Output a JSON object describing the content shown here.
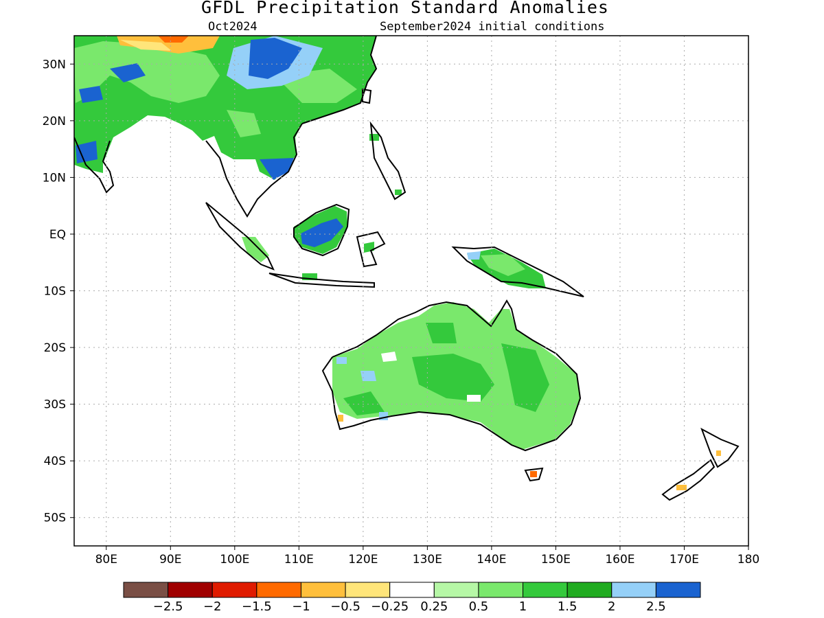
{
  "header": {
    "title": "GFDL Precipitation Standard Anomalies",
    "valid_month": "Oct2024",
    "initial_conditions": "September2024 initial conditions"
  },
  "axes": {
    "lat_labels": [
      "30N",
      "20N",
      "10N",
      "EQ",
      "10S",
      "20S",
      "30S",
      "40S",
      "50S"
    ],
    "lat_values": [
      30,
      20,
      10,
      0,
      -10,
      -20,
      -30,
      -40,
      -50
    ],
    "lon_labels": [
      "80E",
      "90E",
      "100E",
      "110E",
      "120E",
      "130E",
      "140E",
      "150E",
      "160E",
      "170E",
      "180"
    ],
    "lon_values": [
      80,
      90,
      100,
      110,
      120,
      130,
      140,
      150,
      160,
      170,
      180
    ],
    "lon_range": [
      75,
      180
    ],
    "lat_range": [
      -55,
      35
    ],
    "grid": "dotted"
  },
  "colorbar": {
    "labels": [
      "-2.5",
      "-2",
      "-1.5",
      "-1",
      "-0.5",
      "-0.25",
      "0.25",
      "0.5",
      "1",
      "1.5",
      "2",
      "2.5"
    ],
    "colors": [
      "#7a4f45",
      "#a00000",
      "#e01b00",
      "#ff6a00",
      "#ffbf3c",
      "#ffe57a",
      "#ffffff",
      "#b6f7a6",
      "#7ae86c",
      "#34c93c",
      "#20ab20",
      "#95d0f8",
      "#1a63d0"
    ]
  },
  "palette": {
    "land_outline": "#000000",
    "ocean": "#ffffff"
  }
}
